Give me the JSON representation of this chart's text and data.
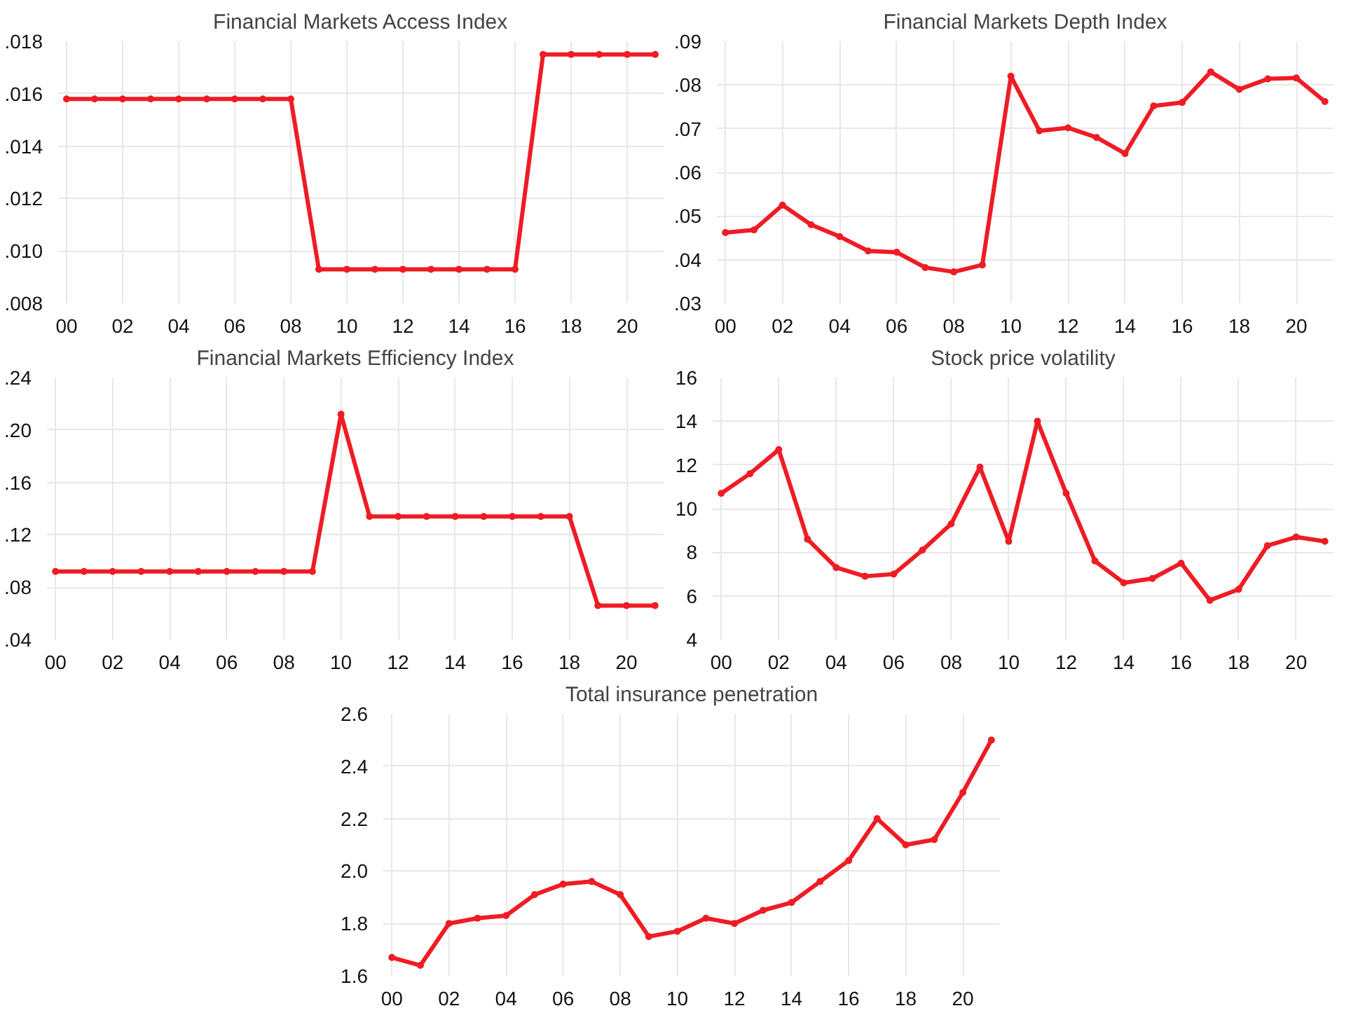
{
  "chart_data": [
    {
      "type": "line",
      "title": "Financial Markets Access Index",
      "x": [
        0,
        1,
        2,
        3,
        4,
        5,
        6,
        7,
        8,
        9,
        10,
        11,
        12,
        13,
        14,
        15,
        16,
        17,
        18,
        19,
        20,
        21
      ],
      "xlim": [
        -0.3,
        21.3
      ],
      "xticks": [
        {
          "value": 0,
          "label": "00"
        },
        {
          "value": 2,
          "label": "02"
        },
        {
          "value": 4,
          "label": "04"
        },
        {
          "value": 6,
          "label": "06"
        },
        {
          "value": 8,
          "label": "08"
        },
        {
          "value": 10,
          "label": "10"
        },
        {
          "value": 12,
          "label": "12"
        },
        {
          "value": 14,
          "label": "14"
        },
        {
          "value": 16,
          "label": "16"
        },
        {
          "value": 18,
          "label": "18"
        },
        {
          "value": 20,
          "label": "20"
        }
      ],
      "series": [
        {
          "color": "#ee1c25",
          "values": [
            0.0158,
            0.0158,
            0.0158,
            0.0158,
            0.0158,
            0.0158,
            0.0158,
            0.0158,
            0.0158,
            0.0093,
            0.0093,
            0.0093,
            0.0093,
            0.0093,
            0.0093,
            0.0093,
            0.0093,
            0.0175,
            0.0175,
            0.0175,
            0.0175,
            0.0175
          ]
        }
      ],
      "ylim": [
        0.008,
        0.018
      ],
      "yticks": [
        {
          "value": 0.008,
          "label": ".008"
        },
        {
          "value": 0.01,
          "label": ".010"
        },
        {
          "value": 0.012,
          "label": ".012"
        },
        {
          "value": 0.014,
          "label": ".014"
        },
        {
          "value": 0.016,
          "label": ".016"
        },
        {
          "value": 0.018,
          "label": ".018"
        }
      ],
      "grid": true,
      "marker": "circle",
      "line_style": "solid"
    },
    {
      "type": "line",
      "title": "Financial Markets Depth Index",
      "x": [
        0,
        1,
        2,
        3,
        4,
        5,
        6,
        7,
        8,
        9,
        10,
        11,
        12,
        13,
        14,
        15,
        16,
        17,
        18,
        19,
        20,
        21
      ],
      "xlim": [
        -0.3,
        21.3
      ],
      "xticks": [
        {
          "value": 0,
          "label": "00"
        },
        {
          "value": 2,
          "label": "02"
        },
        {
          "value": 4,
          "label": "04"
        },
        {
          "value": 6,
          "label": "06"
        },
        {
          "value": 8,
          "label": "08"
        },
        {
          "value": 10,
          "label": "10"
        },
        {
          "value": 12,
          "label": "12"
        },
        {
          "value": 14,
          "label": "14"
        },
        {
          "value": 16,
          "label": "16"
        },
        {
          "value": 18,
          "label": "18"
        },
        {
          "value": 20,
          "label": "20"
        }
      ],
      "series": [
        {
          "color": "#ee1c25",
          "values": [
            0.0462,
            0.0468,
            0.0525,
            0.048,
            0.0453,
            0.042,
            0.0417,
            0.0382,
            0.0372,
            0.0388,
            0.082,
            0.0695,
            0.0702,
            0.068,
            0.0643,
            0.0752,
            0.076,
            0.083,
            0.079,
            0.0814,
            0.0816,
            0.0762
          ]
        }
      ],
      "ylim": [
        0.03,
        0.09
      ],
      "yticks": [
        {
          "value": 0.03,
          "label": ".03"
        },
        {
          "value": 0.04,
          "label": ".04"
        },
        {
          "value": 0.05,
          "label": ".05"
        },
        {
          "value": 0.06,
          "label": ".06"
        },
        {
          "value": 0.07,
          "label": ".07"
        },
        {
          "value": 0.08,
          "label": ".08"
        },
        {
          "value": 0.09,
          "label": ".09"
        }
      ],
      "grid": true,
      "marker": "circle",
      "line_style": "solid"
    },
    {
      "type": "line",
      "title": "Financial Markets Efficiency Index",
      "x": [
        0,
        1,
        2,
        3,
        4,
        5,
        6,
        7,
        8,
        9,
        10,
        11,
        12,
        13,
        14,
        15,
        16,
        17,
        18,
        19,
        20,
        21
      ],
      "xlim": [
        -0.3,
        21.3
      ],
      "xticks": [
        {
          "value": 0,
          "label": "00"
        },
        {
          "value": 2,
          "label": "02"
        },
        {
          "value": 4,
          "label": "04"
        },
        {
          "value": 6,
          "label": "06"
        },
        {
          "value": 8,
          "label": "08"
        },
        {
          "value": 10,
          "label": "10"
        },
        {
          "value": 12,
          "label": "12"
        },
        {
          "value": 14,
          "label": "14"
        },
        {
          "value": 16,
          "label": "16"
        },
        {
          "value": 18,
          "label": "18"
        },
        {
          "value": 20,
          "label": "20"
        }
      ],
      "series": [
        {
          "color": "#ee1c25",
          "values": [
            0.092,
            0.092,
            0.092,
            0.092,
            0.092,
            0.092,
            0.092,
            0.092,
            0.092,
            0.092,
            0.212,
            0.134,
            0.134,
            0.134,
            0.134,
            0.134,
            0.134,
            0.134,
            0.134,
            0.066,
            0.066,
            0.066
          ]
        }
      ],
      "ylim": [
        0.04,
        0.24
      ],
      "yticks": [
        {
          "value": 0.04,
          "label": ".04"
        },
        {
          "value": 0.08,
          "label": ".08"
        },
        {
          "value": 0.12,
          "label": ".12"
        },
        {
          "value": 0.16,
          "label": ".16"
        },
        {
          "value": 0.2,
          "label": ".20"
        },
        {
          "value": 0.24,
          "label": ".24"
        }
      ],
      "grid": true,
      "marker": "circle",
      "line_style": "solid"
    },
    {
      "type": "line",
      "title": "Stock price volatility",
      "x": [
        0,
        1,
        2,
        3,
        4,
        5,
        6,
        7,
        8,
        9,
        10,
        11,
        12,
        13,
        14,
        15,
        16,
        17,
        18,
        19,
        20,
        21
      ],
      "xlim": [
        -0.3,
        21.3
      ],
      "xticks": [
        {
          "value": 0,
          "label": "00"
        },
        {
          "value": 2,
          "label": "02"
        },
        {
          "value": 4,
          "label": "04"
        },
        {
          "value": 6,
          "label": "06"
        },
        {
          "value": 8,
          "label": "08"
        },
        {
          "value": 10,
          "label": "10"
        },
        {
          "value": 12,
          "label": "12"
        },
        {
          "value": 14,
          "label": "14"
        },
        {
          "value": 16,
          "label": "16"
        },
        {
          "value": 18,
          "label": "18"
        },
        {
          "value": 20,
          "label": "20"
        }
      ],
      "series": [
        {
          "color": "#ee1c25",
          "values": [
            10.7,
            11.6,
            12.7,
            8.6,
            7.3,
            6.9,
            7.0,
            8.1,
            9.3,
            11.9,
            8.5,
            14.0,
            10.7,
            7.6,
            6.6,
            6.8,
            7.5,
            5.8,
            6.3,
            8.3,
            8.7,
            8.5
          ]
        }
      ],
      "ylim": [
        4,
        16
      ],
      "yticks": [
        4,
        6,
        8,
        10,
        12,
        14,
        16
      ],
      "grid": true,
      "marker": "circle",
      "line_style": "solid"
    },
    {
      "type": "line",
      "title": "Total insurance penetration",
      "x": [
        0,
        1,
        2,
        3,
        4,
        5,
        6,
        7,
        8,
        9,
        10,
        11,
        12,
        13,
        14,
        15,
        16,
        17,
        18,
        19,
        20,
        21
      ],
      "xlim": [
        -0.3,
        21.3
      ],
      "xticks": [
        {
          "value": 0,
          "label": "00"
        },
        {
          "value": 2,
          "label": "02"
        },
        {
          "value": 4,
          "label": "04"
        },
        {
          "value": 6,
          "label": "06"
        },
        {
          "value": 8,
          "label": "08"
        },
        {
          "value": 10,
          "label": "10"
        },
        {
          "value": 12,
          "label": "12"
        },
        {
          "value": 14,
          "label": "14"
        },
        {
          "value": 16,
          "label": "16"
        },
        {
          "value": 18,
          "label": "18"
        },
        {
          "value": 20,
          "label": "20"
        }
      ],
      "series": [
        {
          "color": "#ee1c25",
          "values": [
            1.67,
            1.64,
            1.8,
            1.82,
            1.83,
            1.91,
            1.95,
            1.96,
            1.91,
            1.75,
            1.77,
            1.82,
            1.8,
            1.85,
            1.88,
            1.96,
            2.04,
            2.2,
            2.1,
            2.12,
            2.3,
            2.5
          ]
        }
      ],
      "ylim": [
        1.6,
        2.6
      ],
      "yticks": [
        {
          "value": 1.6,
          "label": "1.6"
        },
        {
          "value": 1.8,
          "label": "1.8"
        },
        {
          "value": 2.0,
          "label": "2.0"
        },
        {
          "value": 2.2,
          "label": "2.2"
        },
        {
          "value": 2.4,
          "label": "2.4"
        },
        {
          "value": 2.6,
          "label": "2.6"
        }
      ],
      "grid": true,
      "marker": "circle",
      "line_style": "solid"
    }
  ]
}
